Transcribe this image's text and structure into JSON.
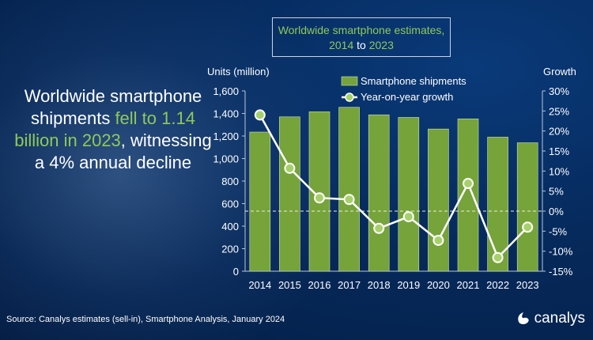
{
  "title_box": {
    "line1": "Worldwide smartphone estimates,",
    "line2_start": "2014",
    "line2_mid": " to ",
    "line2_end": "2023"
  },
  "headline": {
    "part1": "Worldwide smartphone shipments ",
    "part2": "fell to 1.14 billion in 2023",
    "part3": ", witnessing a 4% annual decline"
  },
  "source": "Source:  Canalys estimates (sell-in), Smartphone Analysis, January 2024",
  "logo": {
    "text": "canalys",
    "icon": "canalys-swirl-icon"
  },
  "colors": {
    "bar": "#76a33a",
    "line": "#ffffff",
    "marker": "#a6d16a",
    "accent_text": "#8fc95a",
    "background": "#062a5c"
  },
  "chart_data": {
    "type": "bar+line",
    "categories": [
      "2014",
      "2015",
      "2016",
      "2017",
      "2018",
      "2019",
      "2020",
      "2021",
      "2022",
      "2023"
    ],
    "series": [
      {
        "name": "Smartphone shipments",
        "type": "bar",
        "axis": "left",
        "values": [
          1235,
          1370,
          1415,
          1455,
          1388,
          1365,
          1262,
          1352,
          1190,
          1140
        ]
      },
      {
        "name": "Year-on-year growth",
        "type": "line",
        "axis": "right",
        "values": [
          24.0,
          10.7,
          3.3,
          2.9,
          -4.3,
          -1.4,
          -7.3,
          6.9,
          -11.6,
          -4.0
        ]
      }
    ],
    "ylabel_left": "Units (million)",
    "ylabel_right": "Growth",
    "ylim_left": [
      0,
      1600
    ],
    "yticks_left": [
      "0",
      "200",
      "400",
      "600",
      "800",
      "1,000",
      "1,200",
      "1,400",
      "1,600"
    ],
    "ylim_right": [
      -15,
      30
    ],
    "yticks_right": [
      "-15%",
      "-10%",
      "-5%",
      "0%",
      "5%",
      "10%",
      "15%",
      "20%",
      "25%",
      "30%"
    ],
    "zero_line": "dashed",
    "grid": false,
    "legend_position": "top"
  }
}
